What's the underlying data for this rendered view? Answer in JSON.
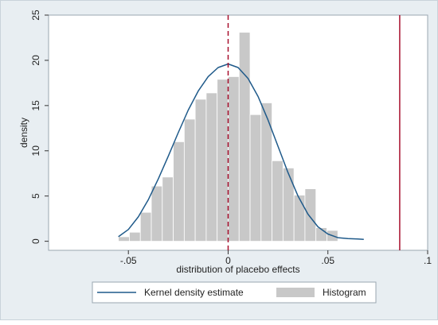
{
  "chart_data": {
    "type": "bar",
    "subtype": "histogram-with-kernel-density",
    "title": "",
    "xlabel": "distribution of placebo effects",
    "ylabel": "density",
    "xlim": [
      -0.09,
      0.1
    ],
    "ylim": [
      -1,
      25
    ],
    "x_ticks": [
      -0.05,
      0,
      0.05,
      0.1
    ],
    "x_tick_labels": [
      "-.05",
      "0",
      ".05",
      ".1"
    ],
    "y_ticks": [
      0,
      5,
      10,
      15,
      20,
      25
    ],
    "y_tick_labels": [
      "0",
      "5",
      "10",
      "15",
      "20",
      "25"
    ],
    "grid": false,
    "histogram": {
      "name": "Histogram",
      "color": "#c8c8c8",
      "bin_width": 0.0055,
      "bin_starts": [
        -0.055,
        -0.0495,
        -0.044,
        -0.0385,
        -0.033,
        -0.0275,
        -0.022,
        -0.0165,
        -0.011,
        -0.0055,
        0.0,
        0.0055,
        0.011,
        0.0165,
        0.022,
        0.0275,
        0.033,
        0.0385,
        0.044,
        0.0495
      ],
      "values": [
        0.5,
        1.0,
        3.2,
        6.1,
        7.1,
        11.0,
        13.5,
        15.7,
        16.4,
        17.9,
        18.2,
        23.1,
        14.0,
        15.3,
        8.9,
        8.1,
        5.1,
        5.8,
        1.5,
        1.2
      ]
    },
    "kde": {
      "name": "Kernel density estimate",
      "color": "#1f5a8a",
      "x": [
        -0.055,
        -0.05,
        -0.045,
        -0.04,
        -0.035,
        -0.03,
        -0.025,
        -0.02,
        -0.015,
        -0.01,
        -0.005,
        0.0,
        0.005,
        0.01,
        0.015,
        0.02,
        0.025,
        0.03,
        0.035,
        0.04,
        0.045,
        0.05,
        0.055,
        0.06,
        0.065,
        0.068
      ],
      "y": [
        0.5,
        1.3,
        2.7,
        4.6,
        6.9,
        9.4,
        12.0,
        14.5,
        16.6,
        18.2,
        19.2,
        19.6,
        19.2,
        18.0,
        16.0,
        13.4,
        10.5,
        7.6,
        5.0,
        3.0,
        1.6,
        0.8,
        0.4,
        0.3,
        0.25,
        0.2
      ]
    },
    "reference_lines": [
      {
        "x": 0.0,
        "style": "dashed",
        "color": "#a8102e"
      },
      {
        "x": 0.086,
        "style": "solid",
        "color": "#a8102e"
      }
    ],
    "legend": {
      "position": "bottom",
      "entries": [
        {
          "label": "Kernel density estimate",
          "kind": "line",
          "color": "#1f5a8a"
        },
        {
          "label": "Histogram",
          "kind": "box",
          "color": "#c8c8c8"
        }
      ]
    }
  }
}
